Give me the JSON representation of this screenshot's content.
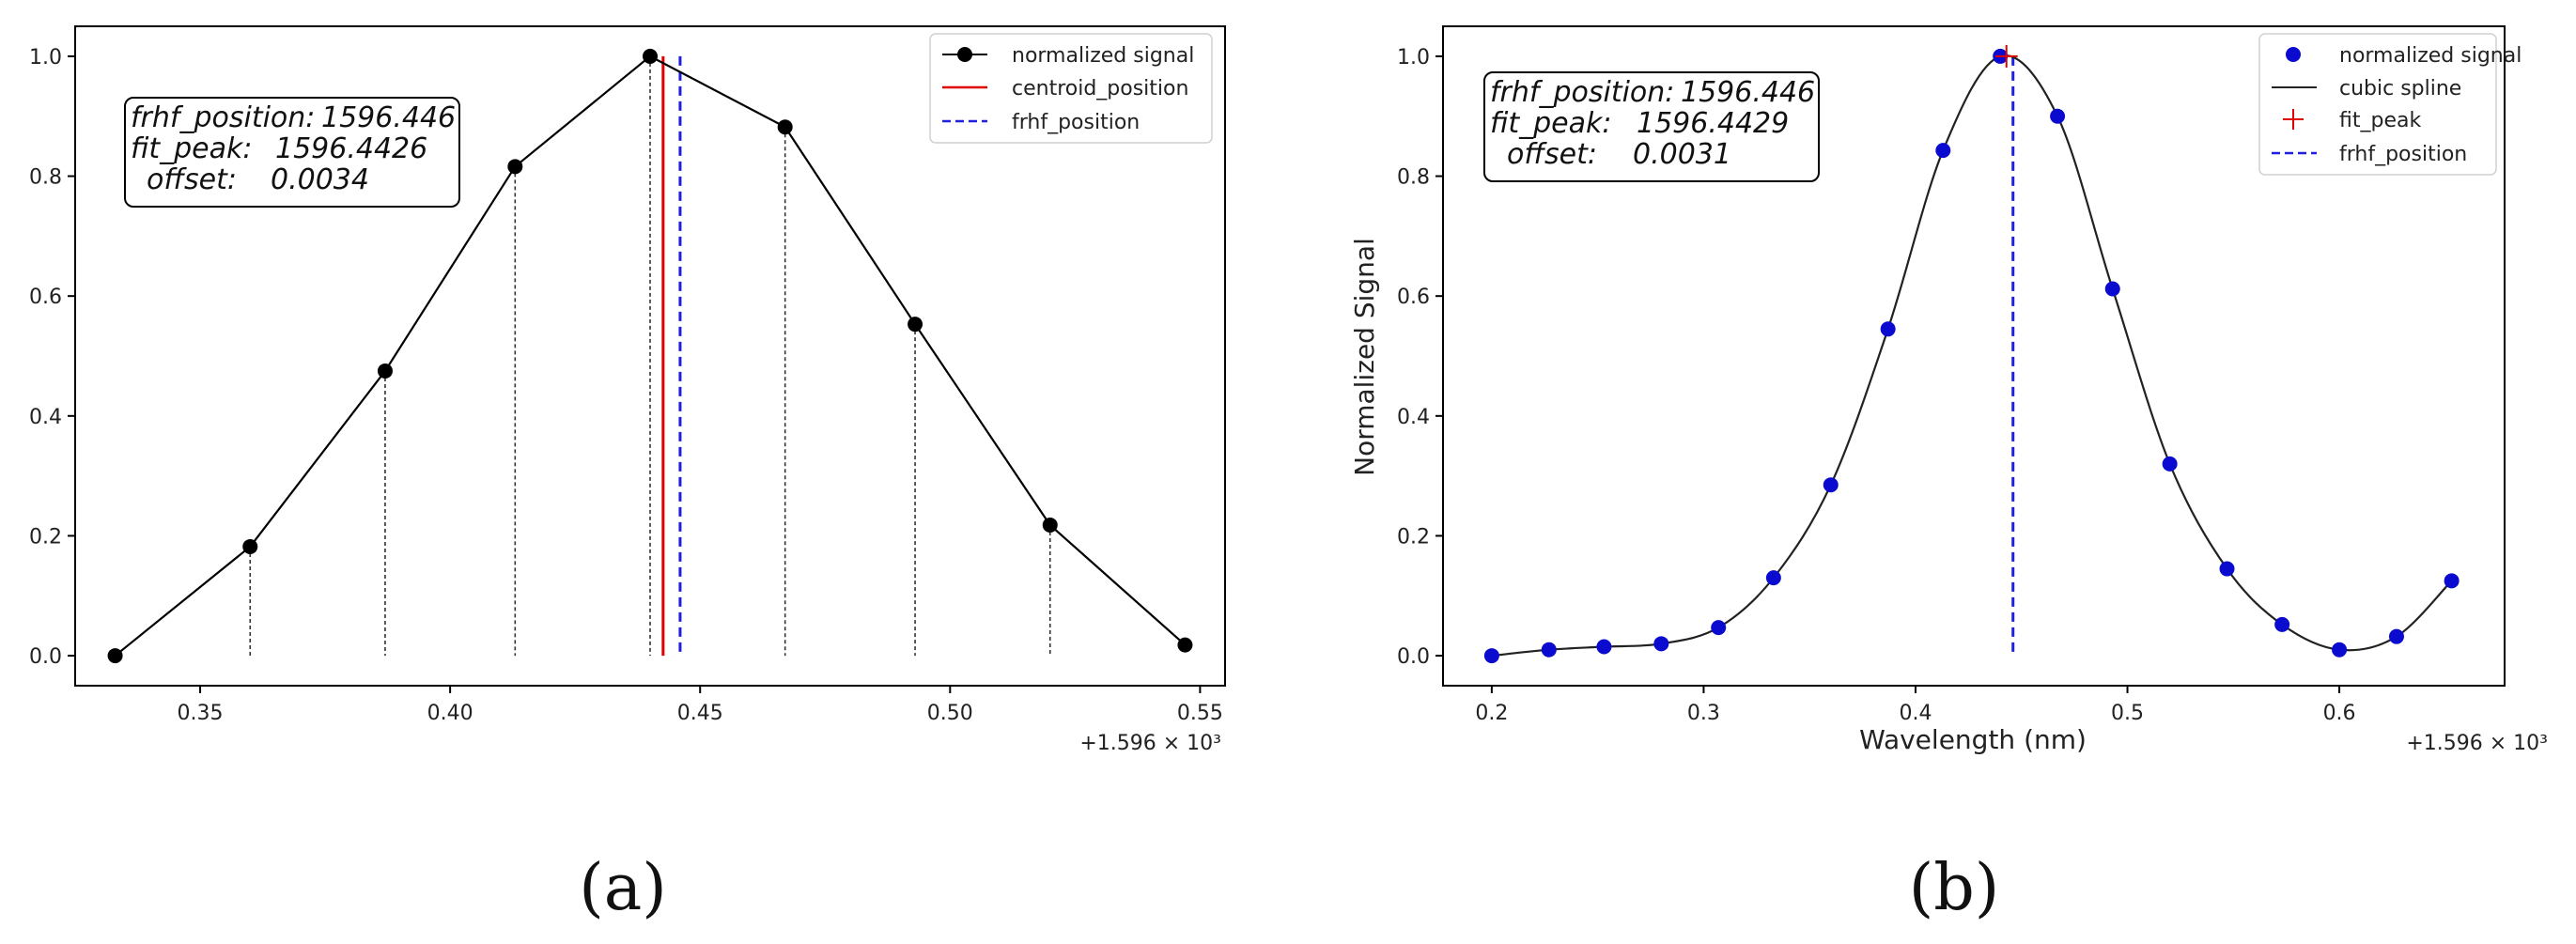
{
  "chart_data": [
    {
      "type": "line",
      "panel_label": "(a)",
      "title": "",
      "xlabel": "",
      "ylabel": "",
      "x_offset_label": "+1.596 × 10³",
      "xlim": [
        0.325,
        0.555
      ],
      "ylim": [
        -0.05,
        1.05
      ],
      "grid": false,
      "x_ticks": [
        0.35,
        0.4,
        0.45,
        0.5,
        0.55
      ],
      "x_tick_labels": [
        "0.35",
        "0.40",
        "0.45",
        "0.50",
        "0.55"
      ],
      "y_ticks": [
        0.0,
        0.2,
        0.4,
        0.6,
        0.8,
        1.0
      ],
      "y_tick_labels": [
        "0.0",
        "0.2",
        "0.4",
        "0.6",
        "0.8",
        "1.0"
      ],
      "series": [
        {
          "name": "normalized signal",
          "color": "#000000",
          "x": [
            0.333,
            0.36,
            0.387,
            0.413,
            0.44,
            0.467,
            0.493,
            0.52,
            0.547
          ],
          "y": [
            0.0,
            0.182,
            0.475,
            0.816,
            1.0,
            0.882,
            0.553,
            0.218,
            0.018
          ]
        }
      ],
      "drop_lines_x": [
        0.36,
        0.387,
        0.413,
        0.44,
        0.467,
        0.493,
        0.52
      ],
      "vlines": [
        {
          "name": "centroid_position",
          "x": 0.4426,
          "color": "#e00000",
          "style": "solid"
        },
        {
          "name": "frhf_position",
          "x": 0.446,
          "color": "#1f1fe0",
          "style": "dashed"
        }
      ],
      "legend": [
        {
          "label": "normalized signal",
          "kind": "line-marker",
          "color": "#000000"
        },
        {
          "label": "centroid_position",
          "kind": "line",
          "color": "#e00000"
        },
        {
          "label": "frhf_position",
          "kind": "dashed",
          "color": "#1f1fe0"
        }
      ],
      "legend_position": "top-right",
      "annotation": [
        {
          "key": "frhf_position:",
          "value": "1596.446"
        },
        {
          "key": "fit_peak:",
          "value": "1596.4426"
        },
        {
          "key": "offset:",
          "value": "0.0034"
        }
      ]
    },
    {
      "type": "scatter",
      "panel_label": "(b)",
      "title": "",
      "xlabel": "Wavelength (nm)",
      "ylabel": "Normalized Signal",
      "x_offset_label": "+1.596 × 10³",
      "xlim": [
        0.177,
        0.678
      ],
      "ylim": [
        -0.05,
        1.05
      ],
      "grid": false,
      "x_ticks": [
        0.2,
        0.3,
        0.4,
        0.5,
        0.6
      ],
      "x_tick_labels": [
        "0.2",
        "0.3",
        "0.4",
        "0.5",
        "0.6"
      ],
      "y_ticks": [
        0.0,
        0.2,
        0.4,
        0.6,
        0.8,
        1.0
      ],
      "y_tick_labels": [
        "0.0",
        "0.2",
        "0.4",
        "0.6",
        "0.8",
        "1.0"
      ],
      "series": [
        {
          "name": "normalized signal",
          "color": "#0b0bd0",
          "x": [
            0.2,
            0.227,
            0.253,
            0.28,
            0.307,
            0.333,
            0.36,
            0.387,
            0.413,
            0.44,
            0.467,
            0.493,
            0.52,
            0.547,
            0.573,
            0.6,
            0.627,
            0.653
          ],
          "y": [
            0.0,
            0.01,
            0.015,
            0.02,
            0.047,
            0.13,
            0.285,
            0.545,
            0.843,
            1.0,
            0.9,
            0.612,
            0.32,
            0.145,
            0.052,
            0.01,
            0.032,
            0.125
          ]
        },
        {
          "name": "cubic spline",
          "color": "#222222",
          "kind": "spline"
        }
      ],
      "fit_peak": {
        "x": 0.4429,
        "y": 1.0,
        "color": "#e00000"
      },
      "vlines": [
        {
          "name": "frhf_position",
          "x": 0.446,
          "color": "#1f1fe0",
          "style": "dashed"
        }
      ],
      "legend": [
        {
          "label": "normalized signal",
          "kind": "dot",
          "color": "#0b0bd0"
        },
        {
          "label": "cubic spline",
          "kind": "line",
          "color": "#222222"
        },
        {
          "label": "fit_peak",
          "kind": "plus",
          "color": "#e00000"
        },
        {
          "label": "frhf_position",
          "kind": "dashed",
          "color": "#1f1fe0"
        }
      ],
      "legend_position": "top-right",
      "annotation": [
        {
          "key": "frhf_position:",
          "value": "1596.446"
        },
        {
          "key": "fit_peak:",
          "value": "1596.4429"
        },
        {
          "key": "offset:",
          "value": "0.0031"
        }
      ]
    }
  ]
}
